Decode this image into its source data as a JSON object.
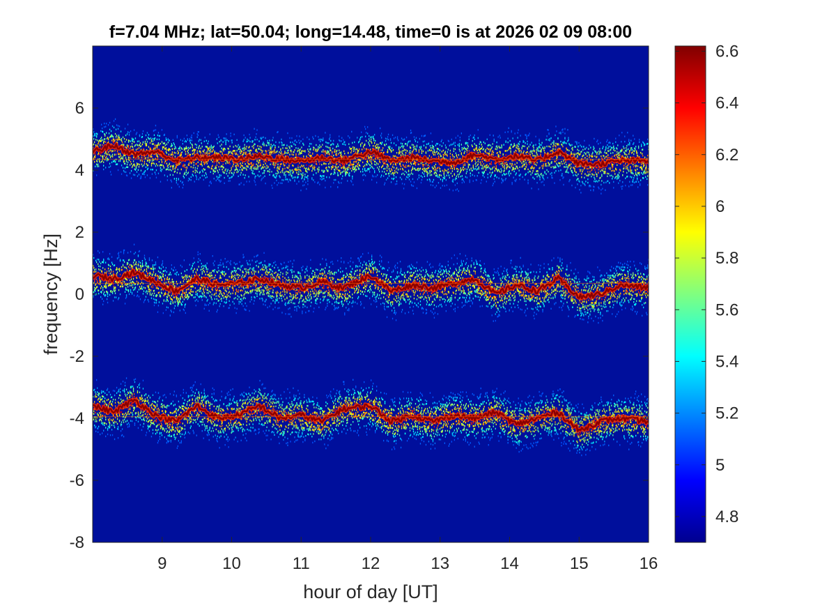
{
  "chart_data": {
    "type": "heatmap",
    "title": "f=7.04 MHz;  lat=50.04; long=14.48, time=0 is at 2026 02 09 08:00",
    "xlabel": "hour of day [UT]",
    "ylabel": "frequency [Hz]",
    "xlim": [
      8,
      16
    ],
    "ylim": [
      -8,
      8
    ],
    "x_ticks": [
      9,
      10,
      11,
      12,
      13,
      14,
      15,
      16
    ],
    "y_ticks": [
      -8,
      -6,
      -4,
      -2,
      0,
      2,
      4,
      6
    ],
    "colorbar": {
      "colormap": "jet",
      "range": [
        4.7,
        6.62
      ],
      "ticks": [
        4.8,
        5,
        5.2,
        5.4,
        5.6,
        5.8,
        6,
        6.2,
        6.4,
        6.6
      ]
    },
    "background_value": 4.75,
    "traces": [
      {
        "baseline_hz": 4.35,
        "x": [
          8,
          8.3,
          8.6,
          8.9,
          9.2,
          9.5,
          9.8,
          10.1,
          10.4,
          10.7,
          11,
          11.3,
          11.6,
          12,
          12.3,
          12.6,
          12.9,
          13.2,
          13.5,
          13.8,
          14.1,
          14.4,
          14.7,
          15,
          15.3,
          15.6,
          16
        ],
        "y": [
          4.6,
          4.8,
          4.5,
          4.6,
          4.3,
          4.4,
          4.4,
          4.35,
          4.45,
          4.35,
          4.3,
          4.4,
          4.3,
          4.6,
          4.3,
          4.4,
          4.3,
          4.25,
          4.5,
          4.35,
          4.45,
          4.3,
          4.6,
          4.2,
          4.2,
          4.3,
          4.3
        ]
      },
      {
        "baseline_hz": 0.35,
        "x": [
          8,
          8.3,
          8.6,
          8.9,
          9.2,
          9.5,
          9.8,
          10.1,
          10.4,
          10.7,
          11,
          11.3,
          11.6,
          12,
          12.3,
          12.6,
          12.9,
          13.2,
          13.5,
          13.8,
          14.1,
          14.4,
          14.7,
          15,
          15.3,
          15.6,
          16
        ],
        "y": [
          0.6,
          0.5,
          0.7,
          0.4,
          0.1,
          0.5,
          0.3,
          0.35,
          0.5,
          0.3,
          0.2,
          0.4,
          0.2,
          0.6,
          0.1,
          0.3,
          0.2,
          0.35,
          0.5,
          0.0,
          0.3,
          0.1,
          0.5,
          -0.1,
          0.0,
          0.3,
          0.2
        ]
      },
      {
        "baseline_hz": -3.95,
        "x": [
          8,
          8.3,
          8.6,
          8.9,
          9.2,
          9.5,
          9.8,
          10.1,
          10.4,
          10.7,
          11,
          11.3,
          11.6,
          12,
          12.3,
          12.6,
          12.9,
          13.2,
          13.5,
          13.8,
          14.1,
          14.4,
          14.7,
          15,
          15.3,
          15.6,
          16
        ],
        "y": [
          -3.6,
          -3.8,
          -3.4,
          -3.9,
          -4.1,
          -3.6,
          -4.0,
          -3.9,
          -3.6,
          -4.0,
          -3.9,
          -4.1,
          -3.7,
          -3.6,
          -4.1,
          -3.9,
          -4.1,
          -3.9,
          -4.0,
          -3.8,
          -4.2,
          -4.0,
          -3.8,
          -4.4,
          -4.1,
          -4.0,
          -4.1
        ]
      }
    ]
  }
}
